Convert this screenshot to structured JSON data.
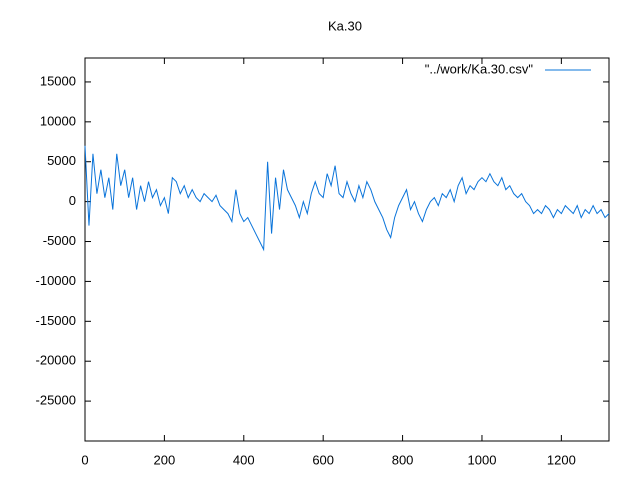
{
  "chart_data": {
    "type": "line",
    "title": "Ka.30",
    "x": [
      0,
      10,
      20,
      30,
      40,
      50,
      60,
      70,
      80,
      90,
      100,
      110,
      120,
      130,
      140,
      150,
      160,
      170,
      180,
      190,
      200,
      210,
      220,
      230,
      240,
      250,
      260,
      270,
      280,
      290,
      300,
      310,
      320,
      330,
      340,
      350,
      360,
      370,
      380,
      390,
      400,
      410,
      420,
      430,
      440,
      450,
      460,
      470,
      480,
      490,
      500,
      510,
      520,
      530,
      540,
      550,
      560,
      570,
      580,
      590,
      600,
      610,
      620,
      630,
      640,
      650,
      660,
      670,
      680,
      690,
      700,
      710,
      720,
      730,
      740,
      750,
      760,
      770,
      780,
      790,
      800,
      810,
      820,
      830,
      840,
      850,
      860,
      870,
      880,
      890,
      900,
      910,
      920,
      930,
      940,
      950,
      960,
      970,
      980,
      990,
      1000,
      1010,
      1020,
      1030,
      1040,
      1050,
      1060,
      1070,
      1080,
      1090,
      1100,
      1110,
      1120,
      1130,
      1140,
      1150,
      1160,
      1170,
      1180,
      1190,
      1200,
      1210,
      1220,
      1230,
      1240,
      1250,
      1260,
      1270,
      1280,
      1290,
      1300,
      1310,
      1320
    ],
    "series": [
      {
        "name": "\"../work/Ka.30.csv\"",
        "color": "#0a74da",
        "values": [
          7000,
          -3000,
          6000,
          1000,
          4000,
          500,
          3000,
          -1000,
          6000,
          2000,
          4000,
          500,
          3000,
          -1000,
          2000,
          0,
          2500,
          500,
          1500,
          -500,
          500,
          -1500,
          3000,
          2500,
          1000,
          2000,
          500,
          1500,
          500,
          0,
          1000,
          500,
          0,
          800,
          -500,
          -1000,
          -1500,
          -2500,
          1500,
          -1500,
          -2500,
          -2000,
          -3000,
          -4000,
          -5000,
          -6000,
          5000,
          -4000,
          3000,
          -1000,
          4000,
          1500,
          500,
          -500,
          -2000,
          0,
          -1500,
          1000,
          2500,
          1000,
          500,
          3500,
          2000,
          4500,
          1000,
          500,
          2500,
          1000,
          0,
          2000,
          500,
          2500,
          1500,
          0,
          -1000,
          -2000,
          -3500,
          -4500,
          -2000,
          -500,
          500,
          1500,
          -1000,
          0,
          -1500,
          -2500,
          -1000,
          0,
          500,
          -500,
          1000,
          500,
          1500,
          0,
          2000,
          3000,
          1000,
          2000,
          1500,
          2500,
          3000,
          2500,
          3500,
          2500,
          2000,
          3000,
          1500,
          2000,
          1000,
          500,
          1000,
          0,
          -500,
          -1500,
          -1000,
          -1500,
          -500,
          -1000,
          -2000,
          -1000,
          -1500,
          -500,
          -1000,
          -1500,
          -500,
          -2000,
          -1000,
          -1500,
          -500,
          -1500,
          -1000,
          -2000,
          -1500
        ]
      }
    ],
    "xlim": [
      0,
      1320
    ],
    "ylim": [
      -30000,
      18000
    ],
    "xticks": [
      0,
      200,
      400,
      600,
      800,
      1000,
      1200
    ],
    "yticks": [
      -25000,
      -20000,
      -15000,
      -10000,
      -5000,
      0,
      5000,
      10000,
      15000
    ],
    "legend": "top-right"
  }
}
